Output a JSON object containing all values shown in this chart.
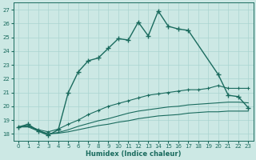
{
  "xlabel": "Humidex (Indice chaleur)",
  "bg_color": "#cce8e4",
  "grid_color": "#aad4d0",
  "line_color": "#1a6b5e",
  "xlim": [
    -0.5,
    23.5
  ],
  "ylim": [
    17.5,
    27.5
  ],
  "xticks": [
    0,
    1,
    2,
    3,
    4,
    5,
    6,
    7,
    8,
    9,
    10,
    11,
    12,
    13,
    14,
    15,
    16,
    17,
    18,
    19,
    20,
    21,
    22,
    23
  ],
  "yticks": [
    18,
    19,
    20,
    21,
    22,
    23,
    24,
    25,
    26,
    27
  ],
  "main_line_x": [
    0,
    1,
    2,
    3,
    4,
    5,
    6,
    7,
    8,
    9,
    10,
    11,
    12,
    13,
    14,
    15,
    16,
    17,
    20,
    21,
    22,
    23
  ],
  "main_line_y": [
    18.5,
    18.7,
    18.2,
    17.9,
    18.3,
    21.0,
    22.5,
    23.3,
    23.5,
    24.2,
    24.9,
    24.8,
    26.1,
    25.1,
    26.9,
    25.8,
    25.6,
    25.5,
    22.3,
    20.8,
    20.7,
    19.9
  ],
  "line2_x": [
    0,
    1,
    2,
    3,
    4,
    5,
    6,
    7,
    8,
    9,
    10,
    11,
    12,
    13,
    14,
    15,
    16,
    17,
    18,
    19,
    20,
    21,
    22,
    23
  ],
  "line2_y": [
    18.5,
    18.6,
    18.3,
    18.15,
    18.35,
    18.7,
    19.0,
    19.4,
    19.7,
    20.0,
    20.2,
    20.4,
    20.6,
    20.8,
    20.9,
    21.0,
    21.1,
    21.2,
    21.2,
    21.3,
    21.5,
    21.3,
    21.3,
    21.3
  ],
  "line3_x": [
    0,
    1,
    2,
    3,
    4,
    5,
    6,
    7,
    8,
    9,
    10,
    11,
    12,
    13,
    14,
    15,
    16,
    17,
    18,
    19,
    20,
    21,
    22,
    23
  ],
  "line3_y": [
    18.5,
    18.55,
    18.25,
    18.0,
    18.1,
    18.3,
    18.55,
    18.75,
    18.95,
    19.1,
    19.3,
    19.5,
    19.65,
    19.75,
    19.85,
    19.95,
    20.0,
    20.1,
    20.15,
    20.2,
    20.25,
    20.3,
    20.3,
    20.25
  ],
  "line4_x": [
    0,
    1,
    2,
    3,
    4,
    5,
    6,
    7,
    8,
    9,
    10,
    11,
    12,
    13,
    14,
    15,
    16,
    17,
    18,
    19,
    20,
    21,
    22,
    23
  ],
  "line4_y": [
    18.5,
    18.5,
    18.2,
    18.0,
    18.05,
    18.15,
    18.3,
    18.45,
    18.6,
    18.7,
    18.85,
    18.95,
    19.1,
    19.2,
    19.3,
    19.35,
    19.4,
    19.5,
    19.55,
    19.6,
    19.6,
    19.65,
    19.65,
    19.65
  ]
}
